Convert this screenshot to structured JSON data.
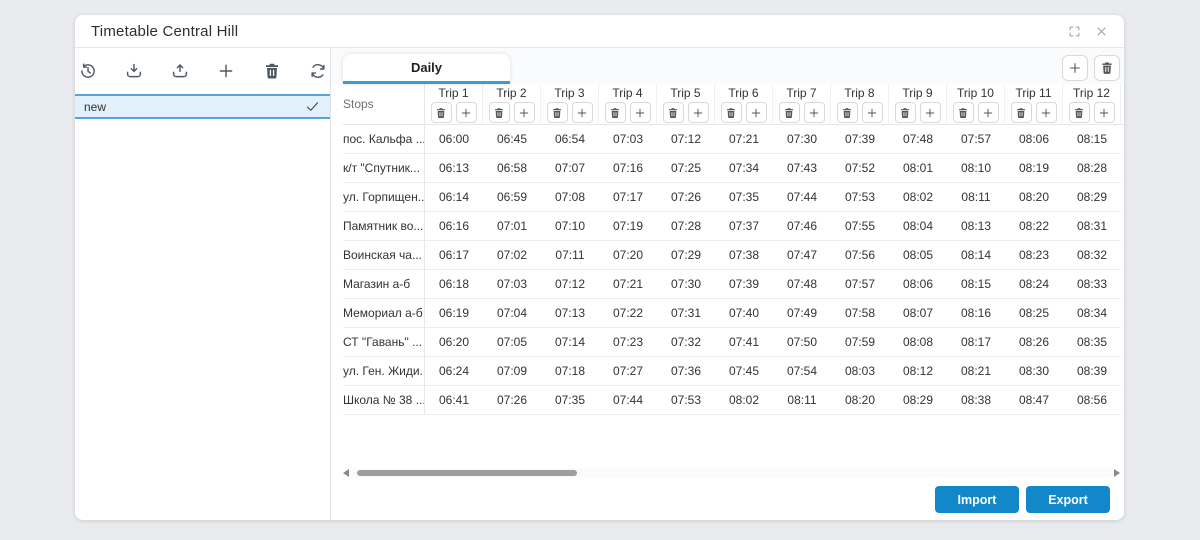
{
  "window": {
    "title": "Timetable Central Hill",
    "controls": [
      {
        "icon": "expand-icon"
      },
      {
        "icon": "close-icon"
      }
    ]
  },
  "sidebar": {
    "toolbar": [
      {
        "icon": "history-icon"
      },
      {
        "icon": "download-icon"
      },
      {
        "icon": "upload-icon"
      },
      {
        "icon": "plus-icon"
      },
      {
        "icon": "trash-icon"
      },
      {
        "icon": "refresh-icon"
      }
    ],
    "items": [
      {
        "label": "new",
        "selected": true,
        "icon": "check-icon"
      }
    ]
  },
  "main": {
    "tab": {
      "label": "Daily",
      "active": true
    },
    "header_actions": [
      {
        "icon": "plus-icon"
      },
      {
        "icon": "trash-icon"
      }
    ],
    "table": {
      "stops_header": "Stops",
      "trip_cell_actions": [
        {
          "icon": "trash-icon"
        },
        {
          "icon": "plus-icon"
        }
      ],
      "trips": [
        "Trip 1",
        "Trip 2",
        "Trip 3",
        "Trip 4",
        "Trip 5",
        "Trip 6",
        "Trip 7",
        "Trip 8",
        "Trip 9",
        "Trip 10",
        "Trip 11",
        "Trip 12"
      ],
      "rows": [
        {
          "stop": "пос. Кальфа ...",
          "times": [
            "06:00",
            "06:45",
            "06:54",
            "07:03",
            "07:12",
            "07:21",
            "07:30",
            "07:39",
            "07:48",
            "07:57",
            "08:06",
            "08:15"
          ]
        },
        {
          "stop": "к/т \"Спутник...",
          "times": [
            "06:13",
            "06:58",
            "07:07",
            "07:16",
            "07:25",
            "07:34",
            "07:43",
            "07:52",
            "08:01",
            "08:10",
            "08:19",
            "08:28"
          ]
        },
        {
          "stop": "ул. Горпищен...",
          "times": [
            "06:14",
            "06:59",
            "07:08",
            "07:17",
            "07:26",
            "07:35",
            "07:44",
            "07:53",
            "08:02",
            "08:11",
            "08:20",
            "08:29"
          ]
        },
        {
          "stop": "Памятник во...",
          "times": [
            "06:16",
            "07:01",
            "07:10",
            "07:19",
            "07:28",
            "07:37",
            "07:46",
            "07:55",
            "08:04",
            "08:13",
            "08:22",
            "08:31"
          ]
        },
        {
          "stop": "Воинская ча...",
          "times": [
            "06:17",
            "07:02",
            "07:11",
            "07:20",
            "07:29",
            "07:38",
            "07:47",
            "07:56",
            "08:05",
            "08:14",
            "08:23",
            "08:32"
          ]
        },
        {
          "stop": "Магазин а-б",
          "times": [
            "06:18",
            "07:03",
            "07:12",
            "07:21",
            "07:30",
            "07:39",
            "07:48",
            "07:57",
            "08:06",
            "08:15",
            "08:24",
            "08:33"
          ]
        },
        {
          "stop": "Мемориал а-б",
          "times": [
            "06:19",
            "07:04",
            "07:13",
            "07:22",
            "07:31",
            "07:40",
            "07:49",
            "07:58",
            "08:07",
            "08:16",
            "08:25",
            "08:34"
          ]
        },
        {
          "stop": "СТ \"Гавань\" ...",
          "times": [
            "06:20",
            "07:05",
            "07:14",
            "07:23",
            "07:32",
            "07:41",
            "07:50",
            "07:59",
            "08:08",
            "08:17",
            "08:26",
            "08:35"
          ]
        },
        {
          "stop": "ул. Ген. Жиди...",
          "times": [
            "06:24",
            "07:09",
            "07:18",
            "07:27",
            "07:36",
            "07:45",
            "07:54",
            "08:03",
            "08:12",
            "08:21",
            "08:30",
            "08:39"
          ]
        },
        {
          "stop": "Школа № 38 ...",
          "times": [
            "06:41",
            "07:26",
            "07:35",
            "07:44",
            "07:53",
            "08:02",
            "08:11",
            "08:20",
            "08:29",
            "08:38",
            "08:47",
            "08:56"
          ]
        }
      ]
    },
    "scrollbar": {
      "orientation": "horizontal"
    },
    "footer": {
      "import": "Import",
      "export": "Export"
    }
  },
  "colors": {
    "accent": "#1287c9",
    "selection_border": "#54a6d9",
    "selection_bg": "#e1f0fa",
    "tab_underline": "#3d9ad2",
    "page_bg": "#e9ebee"
  }
}
